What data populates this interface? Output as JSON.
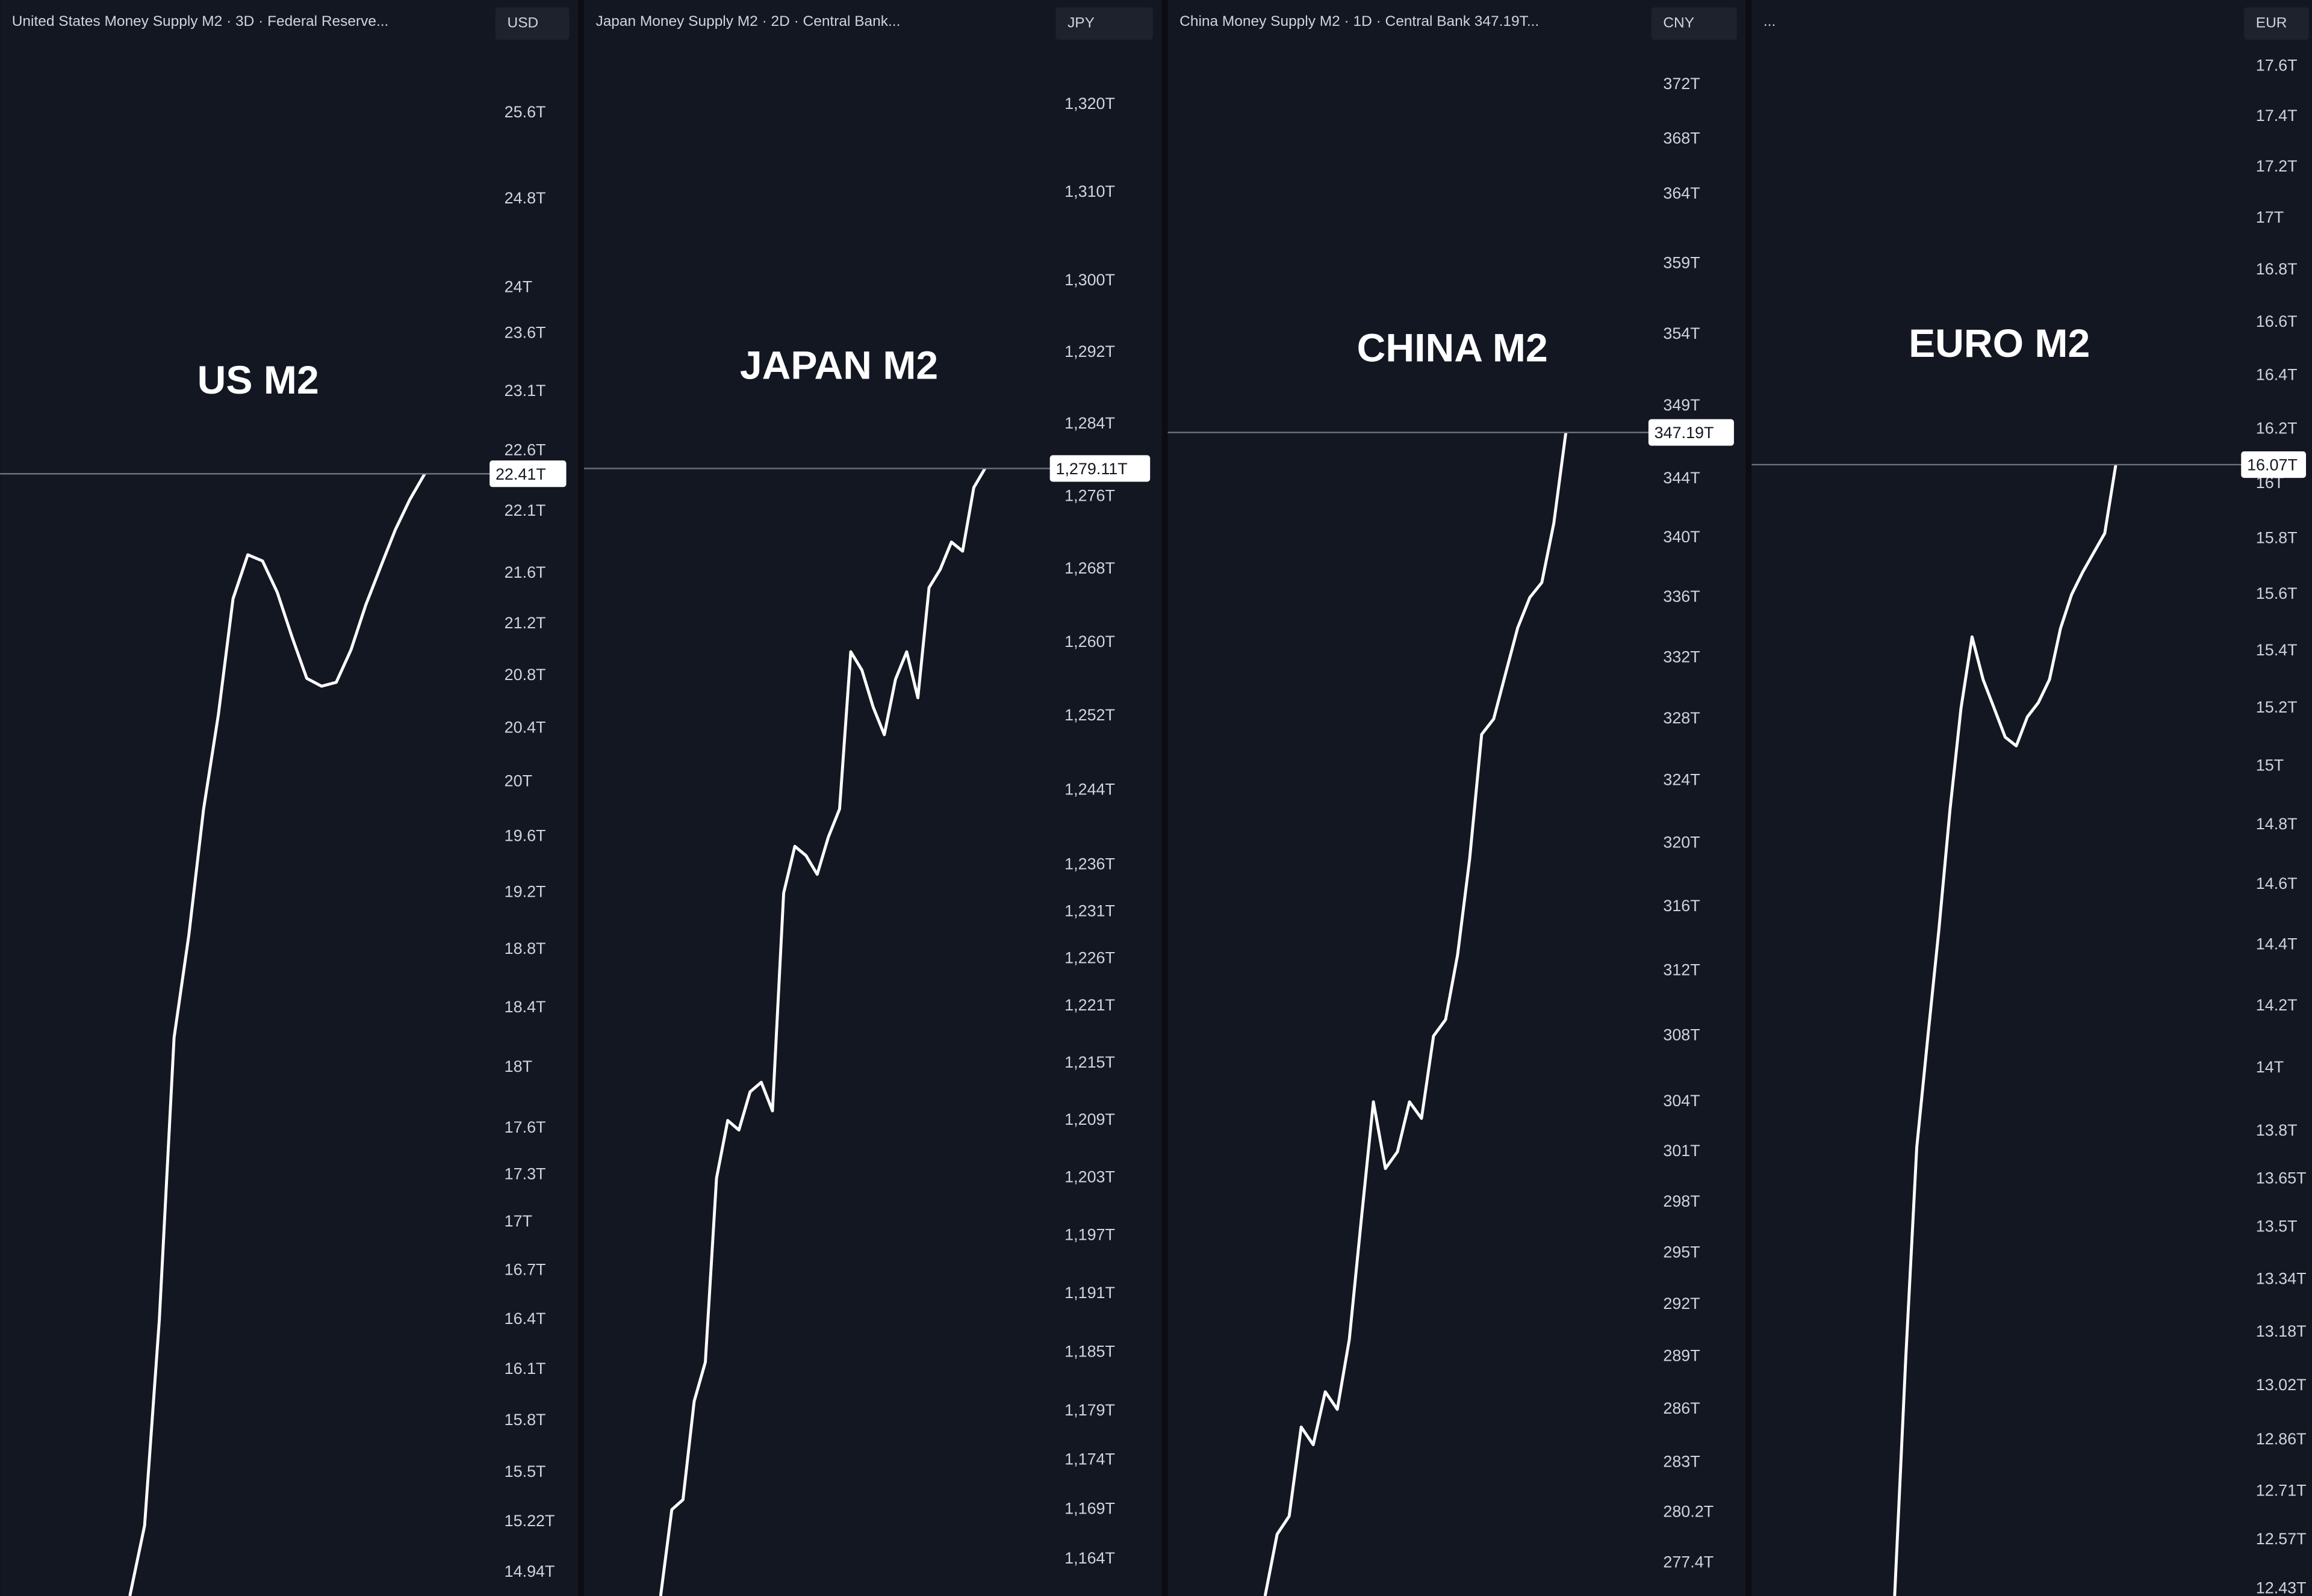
{
  "chart_data": [
    {
      "type": "line",
      "title": "United States Money Supply M2 · 3D · Federal Reserve...",
      "currency": "USD",
      "label": "US M2",
      "log_scale": true,
      "color": "#ffffff",
      "ylim": [
        14.81,
        26.26
      ],
      "yticks": [
        {
          "value": 25.6,
          "label": "25.6T"
        },
        {
          "value": 24.8,
          "label": "24.8T"
        },
        {
          "value": 24,
          "label": "24T"
        },
        {
          "value": 23.6,
          "label": "23.6T"
        },
        {
          "value": 23.1,
          "label": "23.1T"
        },
        {
          "value": 22.6,
          "label": "22.6T"
        },
        {
          "value": 22.1,
          "label": "22.1T"
        },
        {
          "value": 21.6,
          "label": "21.6T"
        },
        {
          "value": 21.2,
          "label": "21.2T"
        },
        {
          "value": 20.8,
          "label": "20.8T"
        },
        {
          "value": 20.4,
          "label": "20.4T"
        },
        {
          "value": 20,
          "label": "20T"
        },
        {
          "value": 19.6,
          "label": "19.6T"
        },
        {
          "value": 19.2,
          "label": "19.2T"
        },
        {
          "value": 18.8,
          "label": "18.8T"
        },
        {
          "value": 18.4,
          "label": "18.4T"
        },
        {
          "value": 18,
          "label": "18T"
        },
        {
          "value": 17.6,
          "label": "17.6T"
        },
        {
          "value": 17.3,
          "label": "17.3T"
        },
        {
          "value": 17,
          "label": "17T"
        },
        {
          "value": 16.7,
          "label": "16.7T"
        },
        {
          "value": 16.4,
          "label": "16.4T"
        },
        {
          "value": 16.1,
          "label": "16.1T"
        },
        {
          "value": 15.8,
          "label": "15.8T"
        },
        {
          "value": 15.5,
          "label": "15.5T"
        },
        {
          "value": 15.22,
          "label": "15.22T"
        },
        {
          "value": 14.94,
          "label": "14.94T"
        }
      ],
      "values": [
        14.81,
        15.2,
        16.4,
        18.2,
        18.9,
        19.8,
        20.5,
        21.4,
        21.75,
        21.7,
        21.45,
        21.1,
        20.78,
        20.72,
        20.75,
        21.0,
        21.35,
        21.65,
        21.95,
        22.2,
        22.41
      ],
      "last_value_label": "22.41T"
    },
    {
      "type": "line",
      "title": "Japan Money Supply M2 · 2D · Central Bank...",
      "currency": "JPY",
      "label": "JAPAN M2",
      "log_scale": true,
      "color": "#ffffff",
      "ylim": [
        1160.3,
        1326.9
      ],
      "yticks": [
        {
          "value": 1320,
          "label": "1,320T"
        },
        {
          "value": 1310,
          "label": "1,310T"
        },
        {
          "value": 1300,
          "label": "1,300T"
        },
        {
          "value": 1292,
          "label": "1,292T"
        },
        {
          "value": 1284,
          "label": "1,284T"
        },
        {
          "value": 1276,
          "label": "1,276T"
        },
        {
          "value": 1268,
          "label": "1,268T"
        },
        {
          "value": 1260,
          "label": "1,260T"
        },
        {
          "value": 1252,
          "label": "1,252T"
        },
        {
          "value": 1244,
          "label": "1,244T"
        },
        {
          "value": 1236,
          "label": "1,236T"
        },
        {
          "value": 1231,
          "label": "1,231T"
        },
        {
          "value": 1226,
          "label": "1,226T"
        },
        {
          "value": 1221,
          "label": "1,221T"
        },
        {
          "value": 1215,
          "label": "1,215T"
        },
        {
          "value": 1209,
          "label": "1,209T"
        },
        {
          "value": 1203,
          "label": "1,203T"
        },
        {
          "value": 1197,
          "label": "1,197T"
        },
        {
          "value": 1191,
          "label": "1,191T"
        },
        {
          "value": 1185,
          "label": "1,185T"
        },
        {
          "value": 1179,
          "label": "1,179T"
        },
        {
          "value": 1174,
          "label": "1,174T"
        },
        {
          "value": 1169,
          "label": "1,169T"
        },
        {
          "value": 1164,
          "label": "1,164T"
        }
      ],
      "values": [
        1160.3,
        1169,
        1170,
        1180,
        1184,
        1203,
        1209,
        1208,
        1212,
        1213,
        1210,
        1233,
        1238,
        1237,
        1235,
        1239,
        1242,
        1259,
        1257,
        1253,
        1250,
        1256,
        1259,
        1254,
        1266,
        1268,
        1271,
        1270,
        1277,
        1279.11
      ],
      "last_value_label": "1,279.11T"
    },
    {
      "type": "line",
      "title": "China Money Supply M2 · 1D · Central Bank  347.19T...",
      "currency": "CNY",
      "label": "CHINA M2",
      "log_scale": true,
      "color": "#ffffff",
      "ylim": [
        275.6,
        375
      ],
      "yticks": [
        {
          "value": 372,
          "label": "372T"
        },
        {
          "value": 368,
          "label": "368T"
        },
        {
          "value": 364,
          "label": "364T"
        },
        {
          "value": 359,
          "label": "359T"
        },
        {
          "value": 354,
          "label": "354T"
        },
        {
          "value": 349,
          "label": "349T"
        },
        {
          "value": 344,
          "label": "344T"
        },
        {
          "value": 340,
          "label": "340T"
        },
        {
          "value": 336,
          "label": "336T"
        },
        {
          "value": 332,
          "label": "332T"
        },
        {
          "value": 328,
          "label": "328T"
        },
        {
          "value": 324,
          "label": "324T"
        },
        {
          "value": 320,
          "label": "320T"
        },
        {
          "value": 316,
          "label": "316T"
        },
        {
          "value": 312,
          "label": "312T"
        },
        {
          "value": 308,
          "label": "308T"
        },
        {
          "value": 304,
          "label": "304T"
        },
        {
          "value": 301,
          "label": "301T"
        },
        {
          "value": 298,
          "label": "298T"
        },
        {
          "value": 295,
          "label": "295T"
        },
        {
          "value": 292,
          "label": "292T"
        },
        {
          "value": 289,
          "label": "289T"
        },
        {
          "value": 286,
          "label": "286T"
        },
        {
          "value": 283,
          "label": "283T"
        },
        {
          "value": 280.2,
          "label": "280.2T"
        },
        {
          "value": 277.4,
          "label": "277.4T"
        }
      ],
      "values": [
        275.6,
        279,
        280,
        285,
        284,
        287,
        286,
        290,
        297,
        304,
        300,
        301,
        304,
        303,
        308,
        309,
        313,
        319,
        327,
        328,
        331,
        334,
        336,
        337,
        341,
        347.19
      ],
      "last_value_label": "347.19T"
    },
    {
      "type": "line",
      "title": "...",
      "currency": "EUR",
      "label": "EURO M2",
      "log_scale": true,
      "color": "#ffffff",
      "ylim": [
        12.41,
        17.69
      ],
      "yticks": [
        {
          "value": 17.6,
          "label": "17.6T"
        },
        {
          "value": 17.4,
          "label": "17.4T"
        },
        {
          "value": 17.2,
          "label": "17.2T"
        },
        {
          "value": 17,
          "label": "17T"
        },
        {
          "value": 16.8,
          "label": "16.8T"
        },
        {
          "value": 16.6,
          "label": "16.6T"
        },
        {
          "value": 16.4,
          "label": "16.4T"
        },
        {
          "value": 16.2,
          "label": "16.2T"
        },
        {
          "value": 16,
          "label": "16T"
        },
        {
          "value": 15.8,
          "label": "15.8T"
        },
        {
          "value": 15.6,
          "label": "15.6T"
        },
        {
          "value": 15.4,
          "label": "15.4T"
        },
        {
          "value": 15.2,
          "label": "15.2T"
        },
        {
          "value": 15,
          "label": "15T"
        },
        {
          "value": 14.8,
          "label": "14.8T"
        },
        {
          "value": 14.6,
          "label": "14.6T"
        },
        {
          "value": 14.4,
          "label": "14.4T"
        },
        {
          "value": 14.2,
          "label": "14.2T"
        },
        {
          "value": 14,
          "label": "14T"
        },
        {
          "value": 13.8,
          "label": "13.8T"
        },
        {
          "value": 13.65,
          "label": "13.65T"
        },
        {
          "value": 13.5,
          "label": "13.5T"
        },
        {
          "value": 13.34,
          "label": "13.34T"
        },
        {
          "value": 13.18,
          "label": "13.18T"
        },
        {
          "value": 13.02,
          "label": "13.02T"
        },
        {
          "value": 12.86,
          "label": "12.86T"
        },
        {
          "value": 12.71,
          "label": "12.71T"
        },
        {
          "value": 12.57,
          "label": "12.57T"
        },
        {
          "value": 12.43,
          "label": "12.43T"
        }
      ],
      "values": [
        12.41,
        13.1,
        13.75,
        14.1,
        14.45,
        14.85,
        15.2,
        15.45,
        15.3,
        15.2,
        15.1,
        15.07,
        15.17,
        15.22,
        15.3,
        15.48,
        15.6,
        15.68,
        15.75,
        15.82,
        16.07
      ],
      "last_value_label": "16.07T"
    }
  ]
}
